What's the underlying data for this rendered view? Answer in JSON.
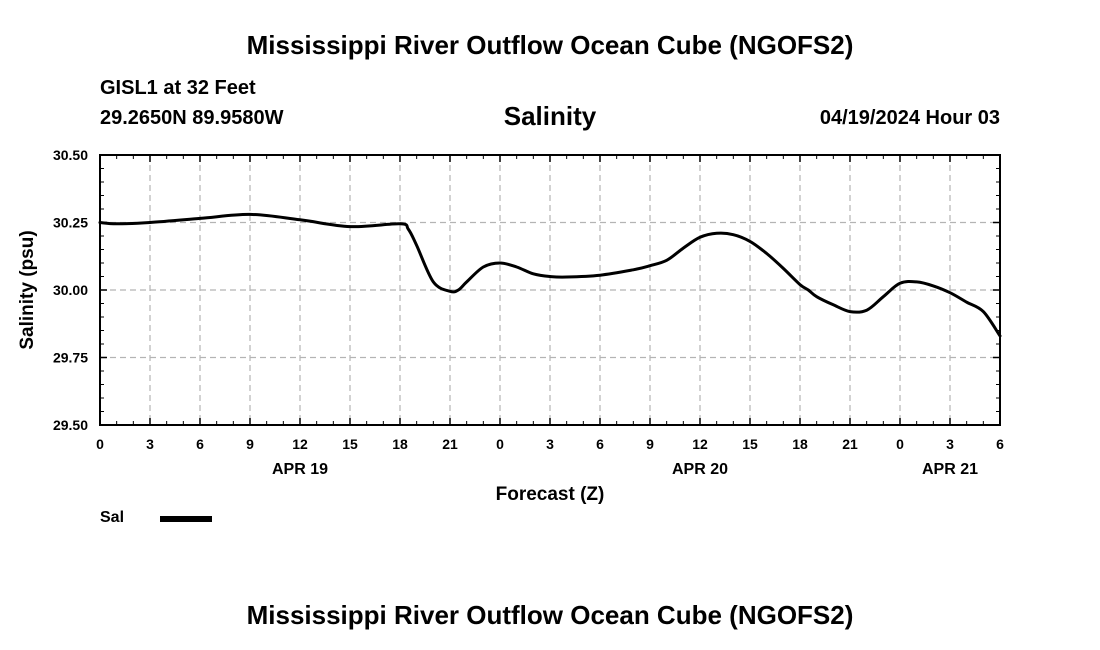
{
  "header": {
    "title": "Mississippi River Outflow Ocean Cube (NGOFS2)",
    "station": "GISL1 at 32 Feet",
    "coords": "29.2650N  89.9580W",
    "variable": "Salinity",
    "datetime": "04/19/2024 Hour 03"
  },
  "footer": {
    "title": "Mississippi River Outflow Ocean Cube (NGOFS2)"
  },
  "legend": {
    "label": "Sal"
  },
  "colors": {
    "line": "#000000",
    "grid": "#b4b4b4"
  },
  "chart_data": {
    "type": "line",
    "title": "Salinity",
    "xlabel": "Forecast (Z)",
    "ylabel": "Salinity (psu)",
    "xlim": [
      0,
      54
    ],
    "ylim": [
      29.5,
      30.5
    ],
    "grid": true,
    "x_tick_labels": [
      "0",
      "3",
      "6",
      "9",
      "12",
      "15",
      "18",
      "21",
      "0",
      "3",
      "6",
      "9",
      "12",
      "15",
      "18",
      "21",
      "0",
      "3",
      "6"
    ],
    "y_tick_labels": [
      "29.50",
      "29.75",
      "30.00",
      "30.25",
      "30.50"
    ],
    "y_ticks": [
      29.5,
      29.75,
      30.0,
      30.25,
      30.5
    ],
    "date_labels": [
      {
        "label": "APR 19",
        "hour": 12
      },
      {
        "label": "APR 20",
        "hour": 36
      },
      {
        "label": "APR 21",
        "hour": 51
      }
    ],
    "series": [
      {
        "name": "Sal",
        "x": [
          0,
          1,
          3,
          6,
          9,
          12,
          15,
          18,
          18.5,
          19,
          20,
          21,
          21.5,
          22,
          23,
          24,
          25,
          26,
          27,
          28,
          30,
          32,
          33,
          34,
          35,
          36,
          37,
          38,
          39,
          40,
          41,
          42,
          42.5,
          43,
          44,
          45,
          46,
          47,
          48,
          49,
          50,
          51,
          52,
          53,
          54
        ],
        "values": [
          30.25,
          30.245,
          30.25,
          30.265,
          30.28,
          30.26,
          30.235,
          30.245,
          30.225,
          30.165,
          30.03,
          29.995,
          30.0,
          30.03,
          30.085,
          30.1,
          30.085,
          30.06,
          30.05,
          30.048,
          30.055,
          30.075,
          30.09,
          30.11,
          30.155,
          30.195,
          30.21,
          30.205,
          30.18,
          30.135,
          30.08,
          30.02,
          30.0,
          29.975,
          29.945,
          29.92,
          29.925,
          29.975,
          30.025,
          30.03,
          30.015,
          29.99,
          29.955,
          29.92,
          29.83
        ]
      }
    ]
  }
}
